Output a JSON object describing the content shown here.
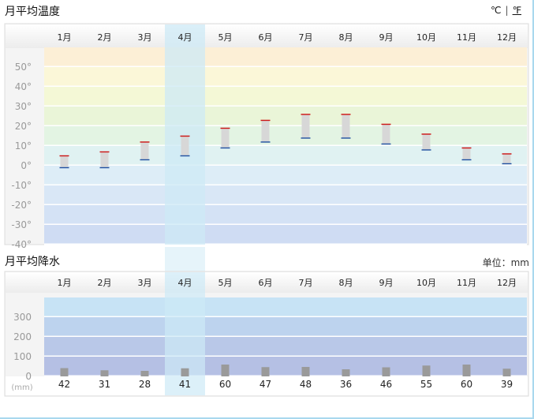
{
  "temp_title": "月平均温度",
  "precip_title": "月平均降水",
  "units": {
    "celsius": "℃",
    "separator": "|",
    "fahrenheit": "℉"
  },
  "precip_unit_note": "单位：mm",
  "highlight_month_index": 3,
  "colors": {
    "temp_bands": [
      "#fcefd6",
      "#fbf7d8",
      "#f4f8d6",
      "#eaf5d8",
      "#e3f4e3",
      "#e0f2f2",
      "#ddedf7",
      "#d9e7f6",
      "#d4e2f5",
      "#cfdcf3"
    ],
    "precip_bands": [
      "#c7e3f5",
      "#bdd3ee",
      "#b9c8e8",
      "#b5c0e4"
    ],
    "high_mark": "#cc1111",
    "low_mark": "#1f4fa0",
    "range_bar": "#d7d7d7",
    "precip_bar": "#9a9a9a",
    "highlight": "#cdeaf6"
  },
  "chart_data": [
    {
      "type": "bar",
      "title": "月平均温度",
      "categories": [
        "1月",
        "2月",
        "3月",
        "4月",
        "5月",
        "6月",
        "7月",
        "8月",
        "9月",
        "10月",
        "11月",
        "12月"
      ],
      "series": [
        {
          "name": "",
          "values": [
            5,
            7,
            12,
            15,
            19,
            23,
            26,
            26,
            21,
            16,
            9,
            6
          ]
        },
        {
          "name": "",
          "values": [
            -1,
            -1,
            3,
            5,
            9,
            12,
            14,
            14,
            11,
            8,
            3,
            1
          ]
        }
      ],
      "ylim": [
        -40,
        60
      ],
      "yticks": [
        "50°",
        "40°",
        "30°",
        "20°",
        "10°",
        "0°",
        "-10°",
        "-20°",
        "-30°",
        "-40°"
      ],
      "ytick_values": [
        50,
        40,
        30,
        20,
        10,
        0,
        -10,
        -20,
        -30,
        -40
      ],
      "grid": true
    },
    {
      "type": "bar",
      "title": "月平均降水",
      "categories": [
        "1月",
        "2月",
        "3月",
        "4月",
        "5月",
        "6月",
        "7月",
        "8月",
        "9月",
        "10月",
        "11月",
        "12月"
      ],
      "values": [
        42,
        31,
        28,
        41,
        60,
        47,
        48,
        36,
        46,
        55,
        60,
        39
      ],
      "value_labels": [
        "42",
        "31",
        "28",
        "41",
        "60",
        "47",
        "48",
        "36",
        "46",
        "55",
        "60",
        "39"
      ],
      "ylim": [
        0,
        400
      ],
      "yticks": [
        "300",
        "200",
        "100",
        "0"
      ],
      "ytick_values": [
        300,
        200,
        100,
        0
      ],
      "unit_label": "(mm)",
      "grid": true
    }
  ]
}
